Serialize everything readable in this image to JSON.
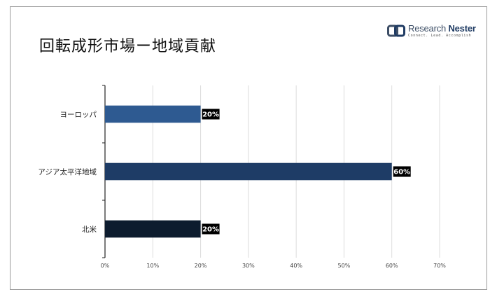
{
  "title": "回転成形市場ー地域貢献",
  "logo": {
    "name_first": "Research",
    "name_second": "Nester",
    "tagline": "Connect. Lead. Accomplish",
    "icon": "research-nester-logo-icon"
  },
  "chart_data": {
    "type": "bar",
    "orientation": "horizontal",
    "categories": [
      "ヨーロッパ",
      "アジア太平洋地域",
      "北米"
    ],
    "values": [
      20,
      60,
      20
    ],
    "value_labels": [
      "20%",
      "60%",
      "20%"
    ],
    "bar_colors": [
      "#2e5a91",
      "#1e3c66",
      "#0d1c2e"
    ],
    "xlim": [
      0,
      70
    ],
    "x_ticks": [
      "0%",
      "10%",
      "20%",
      "30%",
      "40%",
      "50%",
      "60%",
      "70%"
    ],
    "grid": true,
    "legend": "none"
  }
}
